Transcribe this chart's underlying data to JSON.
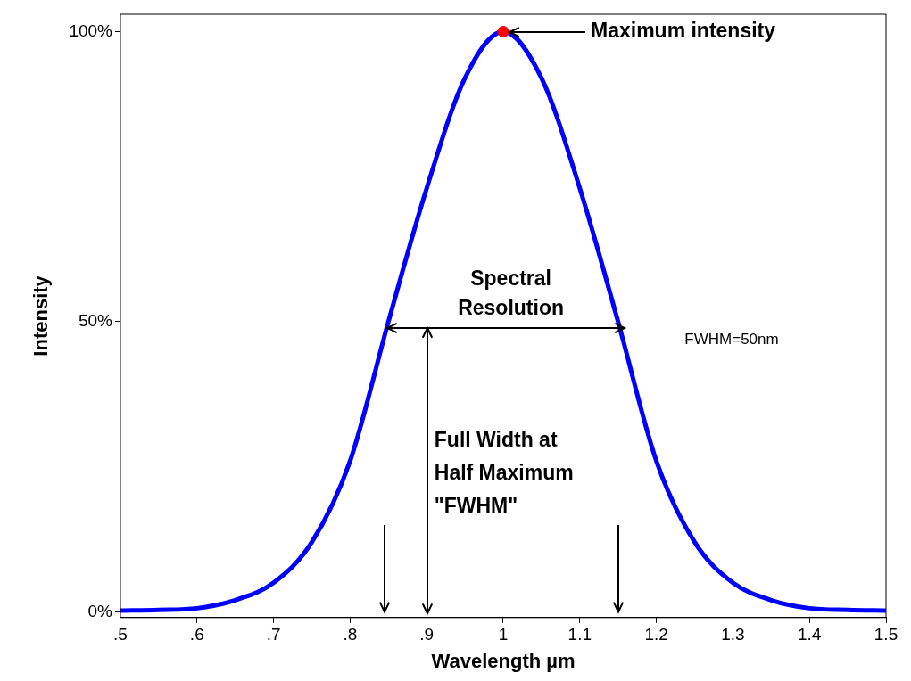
{
  "chart_data": {
    "type": "line",
    "xlabel": "Wavelength µm",
    "ylabel": "Intensity",
    "xlim": [
      0.5,
      1.5
    ],
    "ylim": [
      -1,
      103
    ],
    "xticks": [
      {
        "value": 0.5,
        "label": ".5"
      },
      {
        "value": 0.6,
        "label": ".6"
      },
      {
        "value": 0.7,
        "label": ".7"
      },
      {
        "value": 0.8,
        "label": ".8"
      },
      {
        "value": 0.9,
        "label": ".9"
      },
      {
        "value": 1,
        "label": "1"
      },
      {
        "value": 1.1,
        "label": "1.1"
      },
      {
        "value": 1.2,
        "label": "1.2"
      },
      {
        "value": 1.3,
        "label": "1.3"
      },
      {
        "value": 1.4,
        "label": "1.4"
      },
      {
        "value": 1.5,
        "label": "1.5"
      }
    ],
    "yticks": [
      {
        "value": 0,
        "label": "0%"
      },
      {
        "value": 50,
        "label": "50%"
      },
      {
        "value": 100,
        "label": "100%"
      }
    ],
    "grid": false,
    "legend": false,
    "series": [
      {
        "color": "#0000ff",
        "marker": "none",
        "line_style": "solid",
        "x": [
          0.5,
          0.55,
          0.6,
          0.65,
          0.7,
          0.75,
          0.8,
          0.85,
          0.9,
          0.95,
          1,
          1.05,
          1.1,
          1.15,
          1.2,
          1.25,
          1.3,
          1.35,
          1.4,
          1.45,
          1.5
        ],
        "values": [
          0.2,
          0.3,
          0.6,
          2,
          5,
          12,
          26,
          50,
          73,
          92,
          100,
          92,
          73,
          50,
          26,
          12,
          5,
          2,
          0.6,
          0.3,
          0.2
        ]
      },
      {
        "type": "scatter",
        "color": "#ff0000",
        "marker": "circle",
        "x": [
          1
        ],
        "values": [
          100
        ]
      }
    ],
    "annotations": [
      {
        "text": "Maximum intensity",
        "x": 1,
        "y": 100
      },
      "Spectral\nResolution",
      "FWHM=50nm",
      "Full Width at\nHalf Maximum\n\"FWHM\""
    ]
  }
}
